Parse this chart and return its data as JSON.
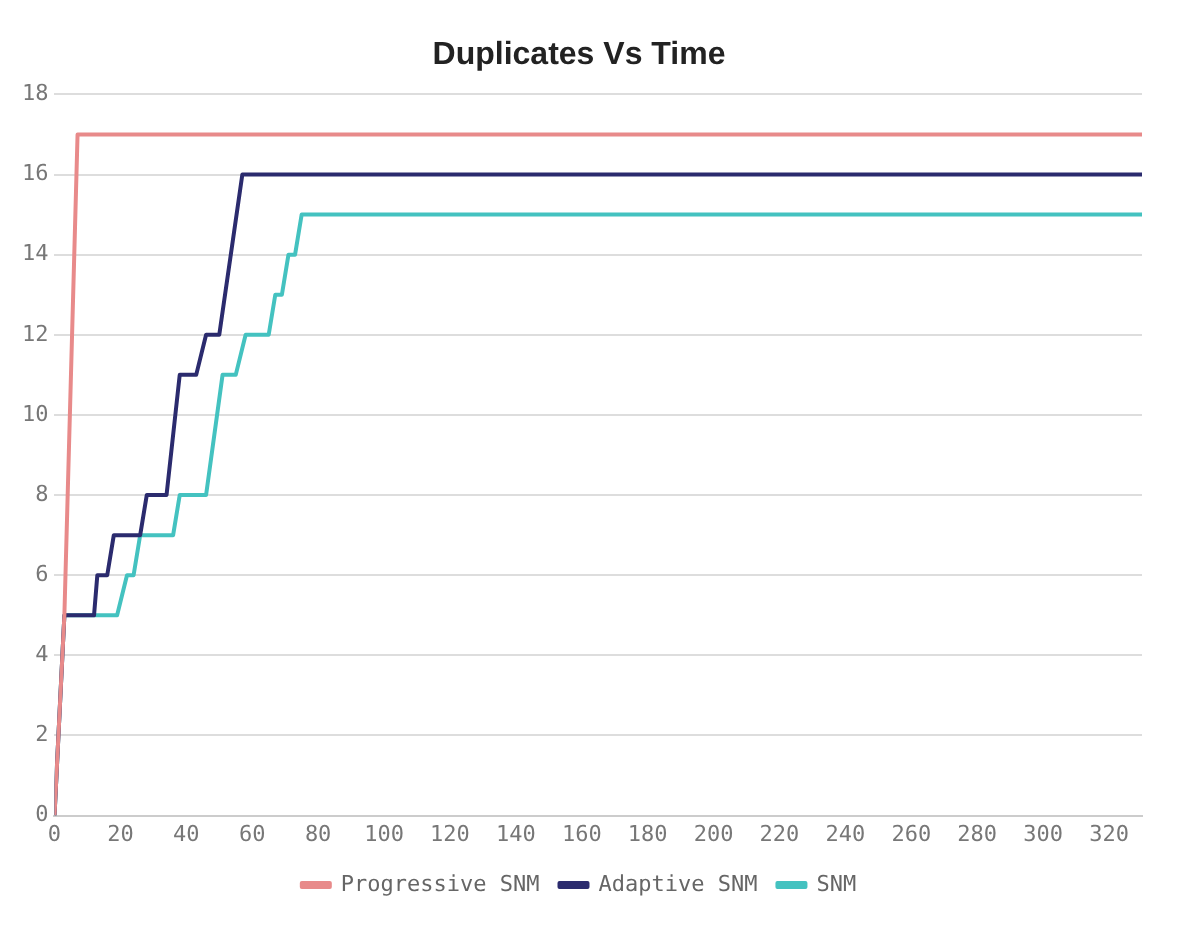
{
  "chart_data": {
    "type": "line",
    "title": "Duplicates Vs Time",
    "xlim": [
      0,
      330
    ],
    "xticks": [
      0,
      20,
      40,
      60,
      80,
      100,
      120,
      140,
      160,
      180,
      200,
      220,
      240,
      260,
      280,
      300,
      320
    ],
    "ylim": [
      0,
      18
    ],
    "yticks": [
      0,
      2,
      4,
      6,
      8,
      10,
      12,
      14,
      16,
      18
    ],
    "grid": "y",
    "legend": "bottom",
    "marker": "none",
    "line_style": "solid",
    "series": [
      {
        "name": "Progressive SNM",
        "color": "#e88a8a",
        "x": [
          0,
          3,
          7,
          330
        ],
        "values": [
          0,
          5,
          17,
          17
        ]
      },
      {
        "name": "Adaptive SNM",
        "color": "#2b2b6e",
        "x": [
          0,
          3,
          12,
          13,
          16,
          18,
          26,
          28,
          34,
          38,
          43,
          46,
          50,
          57,
          330
        ],
        "values": [
          0,
          5,
          5,
          6,
          6,
          7,
          7,
          8,
          8,
          11,
          11,
          12,
          12,
          16,
          16
        ]
      },
      {
        "name": "SNM",
        "color": "#44c2c0",
        "x": [
          0,
          3,
          19,
          22,
          24,
          26,
          36,
          38,
          46,
          51,
          55,
          58,
          65,
          67,
          69,
          71,
          73,
          75,
          330
        ],
        "values": [
          0,
          5,
          5,
          6,
          6,
          7,
          7,
          8,
          8,
          11,
          11,
          12,
          12,
          13,
          13,
          14,
          14,
          15,
          15
        ]
      }
    ]
  }
}
